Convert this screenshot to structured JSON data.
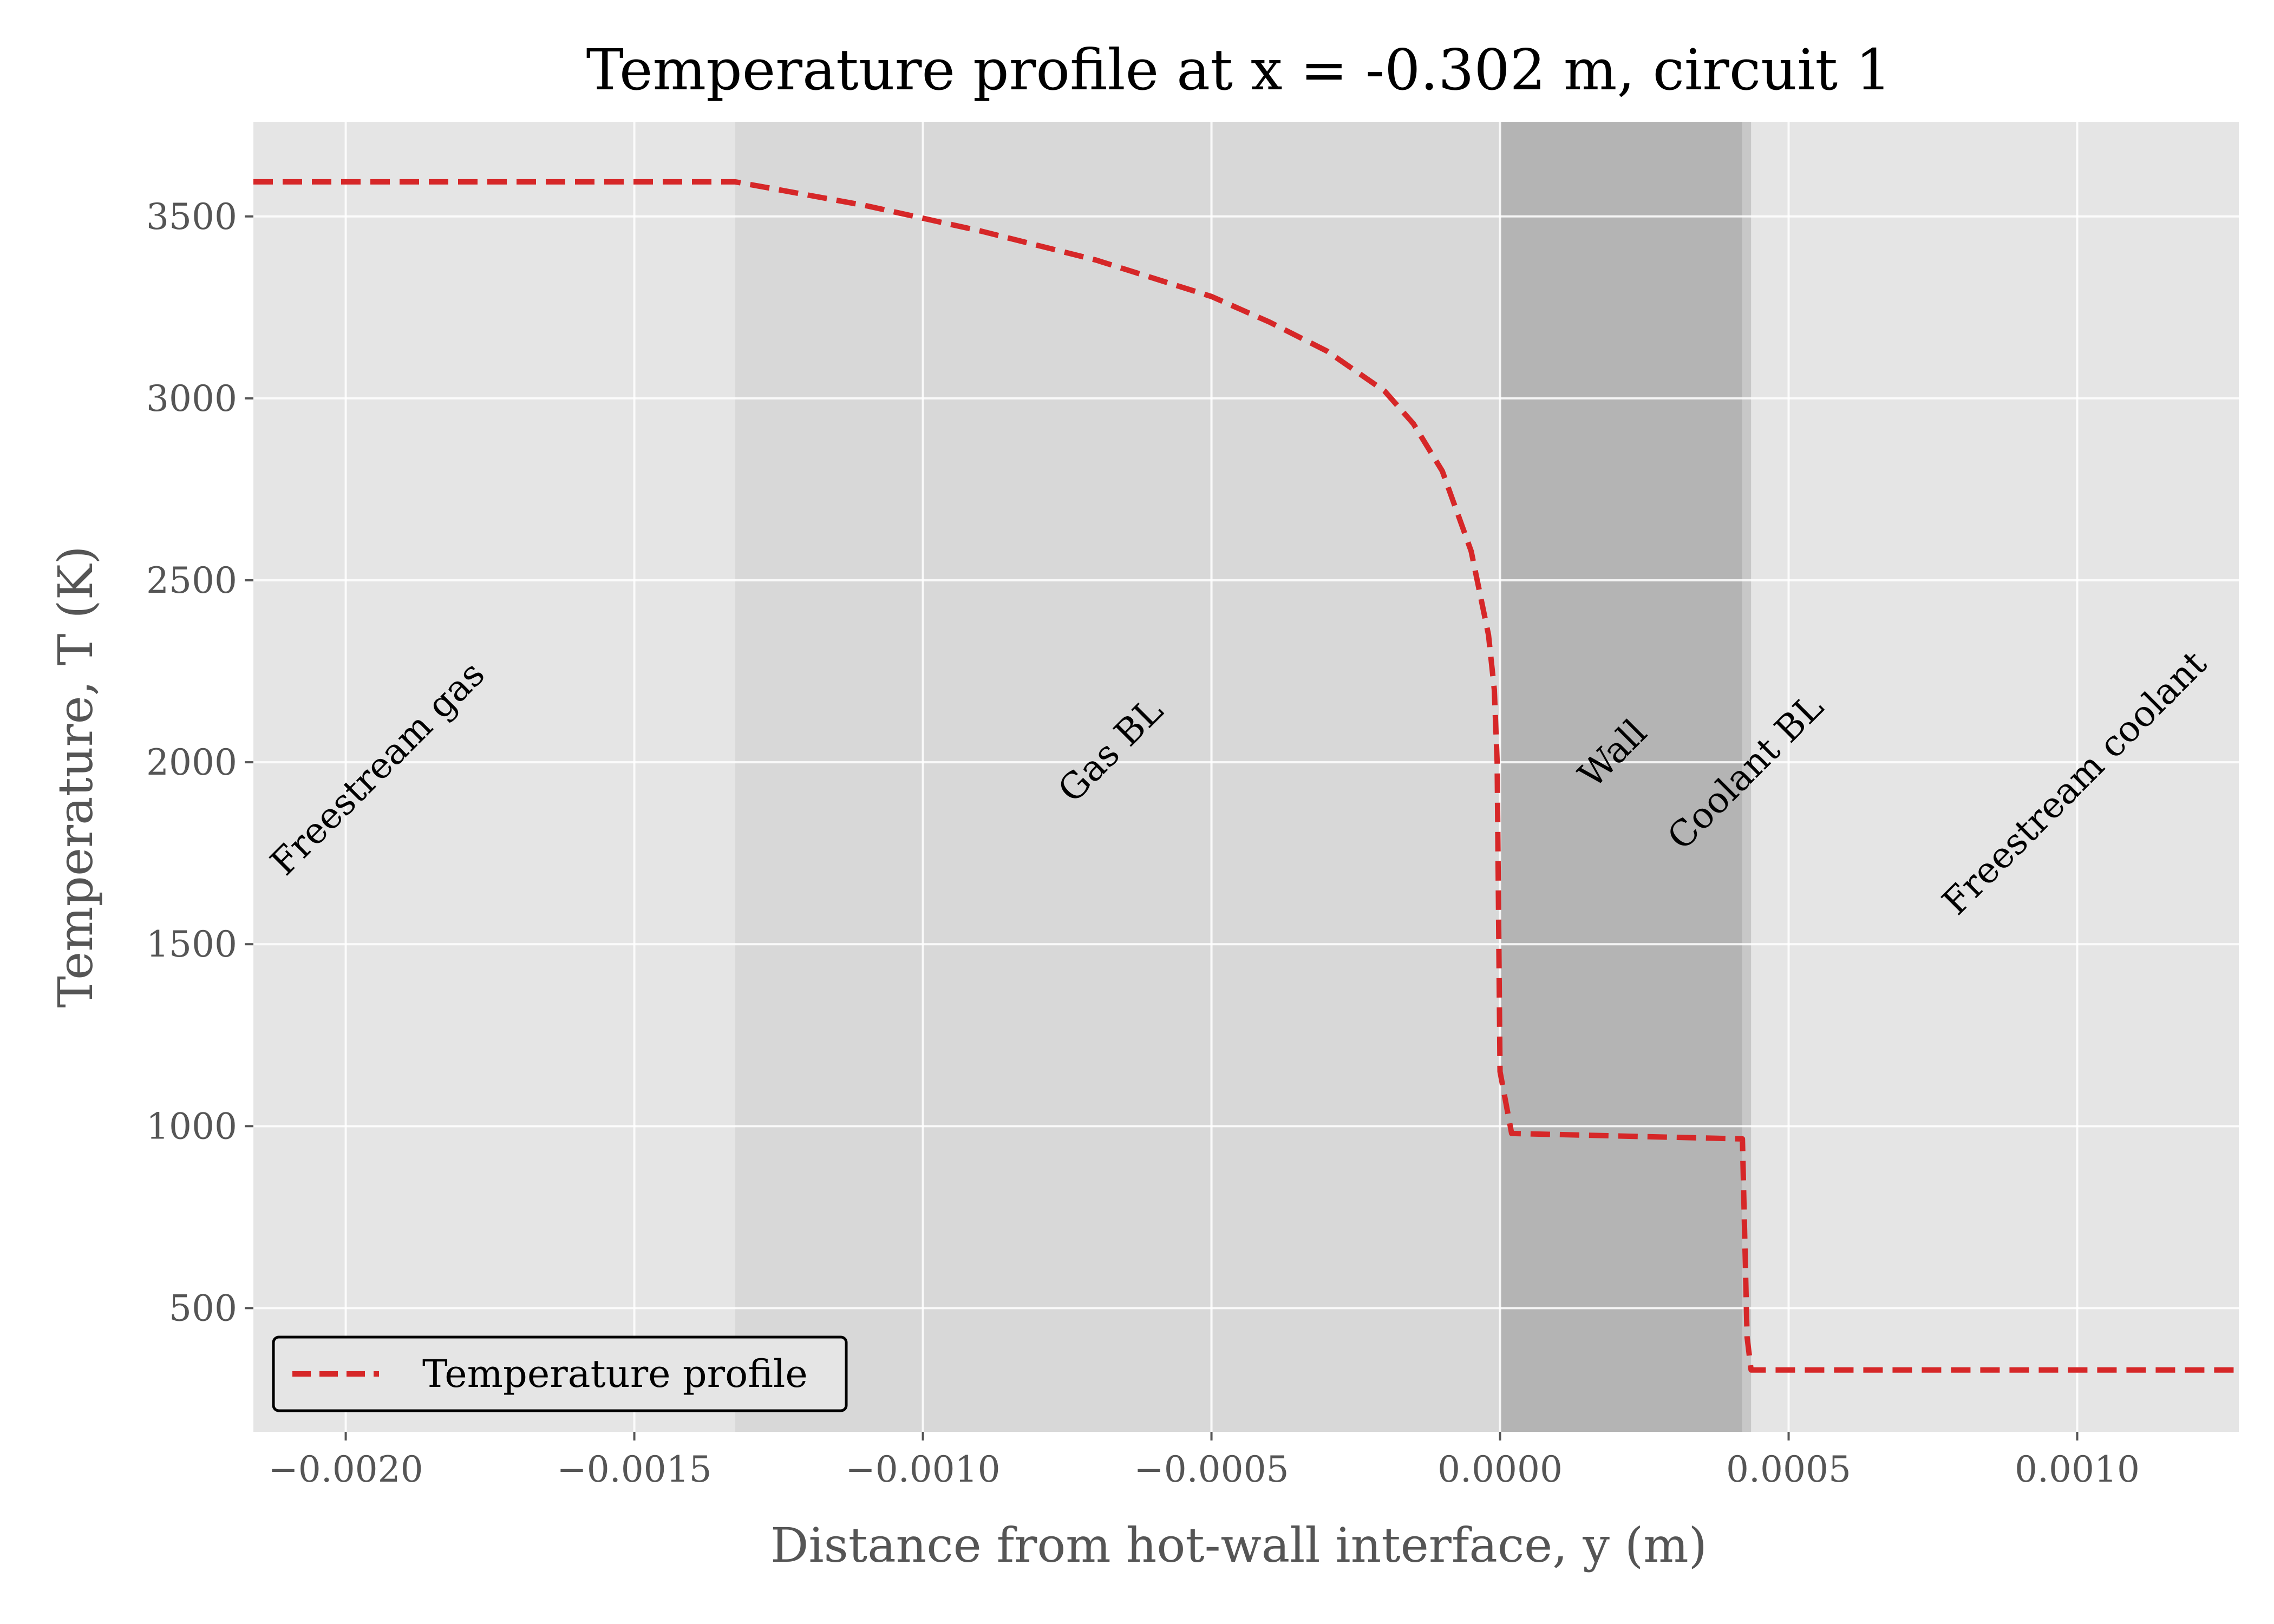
{
  "chart_data": {
    "type": "line",
    "title": "Temperature profile at x = -0.302 m, circuit 1",
    "xlabel": "Distance from hot-wall interface, y (m)",
    "ylabel": "Temperature, T (K)",
    "xlim": [
      -0.00216,
      0.00128
    ],
    "ylim": [
      160,
      3760
    ],
    "x_ticks": [
      -0.002,
      -0.0015,
      -0.001,
      -0.0005,
      0.0,
      0.0005,
      0.001
    ],
    "x_tick_labels": [
      "−0.0020",
      "−0.0015",
      "−0.0010",
      "−0.0005",
      "0.0000",
      "0.0005",
      "0.0010"
    ],
    "y_ticks": [
      500,
      1000,
      1500,
      2000,
      2500,
      3000,
      3500
    ],
    "y_tick_labels": [
      "500",
      "1000",
      "1500",
      "2000",
      "2500",
      "3000",
      "3500"
    ],
    "grid": true,
    "legend_position": "lower-left",
    "regions": [
      {
        "label": "Freestream gas",
        "x0": -0.00216,
        "x1": -0.001325,
        "color": "#e5e5e5",
        "label_x": -0.00193,
        "label_y": 1960
      },
      {
        "label": "Gas BL",
        "x0": -0.001325,
        "x1": 0.0,
        "color": "#d8d8d8",
        "label_x": -0.00066,
        "label_y": 2010
      },
      {
        "label": "Wall",
        "x0": 0.0,
        "x1": 0.00042,
        "color": "#b4b4b4",
        "label_x": 0.00021,
        "label_y": 2000
      },
      {
        "label": "Coolant BL",
        "x0": 0.00042,
        "x1": 0.000435,
        "color": "#c8c8c8",
        "label_x": 0.00044,
        "label_y": 1950
      },
      {
        "label": "Freestream coolant",
        "x0": 0.000435,
        "x1": 0.00128,
        "color": "#e5e5e5",
        "label_x": 0.00101,
        "label_y": 1920
      }
    ],
    "series": [
      {
        "name": "Temperature profile",
        "color": "#d62728",
        "style": "dashed",
        "x": [
          -0.00216,
          -0.001325,
          -0.0011,
          -0.0009,
          -0.0007,
          -0.0005,
          -0.0004,
          -0.0003,
          -0.0002,
          -0.00015,
          -0.0001,
          -5e-05,
          -2e-05,
          -1e-05,
          -5e-06,
          0.0,
          2e-05,
          0.00042,
          0.000428,
          0.000435,
          0.00128
        ],
        "y": [
          3595,
          3595,
          3530,
          3460,
          3380,
          3280,
          3210,
          3130,
          3020,
          2930,
          2800,
          2580,
          2350,
          2200,
          2000,
          1150,
          980,
          965,
          420,
          330,
          330
        ]
      }
    ]
  }
}
